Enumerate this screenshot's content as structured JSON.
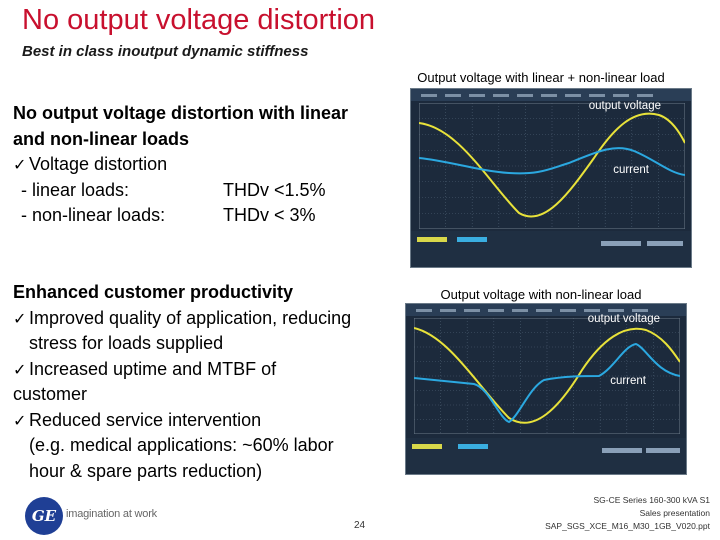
{
  "header": {
    "title": "No output voltage distortion",
    "subtitle": "Best in class inoutput dynamic stiffness"
  },
  "section1": {
    "heading_line1": "No output voltage distortion with linear",
    "heading_line2": "and non-linear loads",
    "bullet": "Voltage distortion",
    "rows": [
      {
        "label": "- linear loads:",
        "value": "THDv  <1.5%"
      },
      {
        "label": "- non-linear loads:",
        "value": "THDv  <  3%"
      }
    ]
  },
  "section2": {
    "heading": "Enhanced customer productivity",
    "bullets": [
      {
        "lines": [
          "Improved quality of application, reducing",
          "stress for loads supplied"
        ]
      },
      {
        "lines": [
          "Increased uptime and MTBF of",
          "customer"
        ]
      },
      {
        "lines": [
          "Reduced service intervention",
          "(e.g. medical applications: ~60% labor",
          "hour & spare parts reduction)"
        ]
      }
    ]
  },
  "scope1": {
    "caption": "Output  voltage with linear + non-linear load",
    "voltage_label": "output voltage",
    "current_label": "current"
  },
  "scope2": {
    "caption": "Output  voltage with non-linear load",
    "voltage_label": "output voltage",
    "current_label": "current"
  },
  "footer": {
    "tagline": "imagination at work",
    "logo_text": "GE",
    "page_number": "24",
    "lines": [
      "SG-CE Series 160-300 kVA S1",
      "Sales presentation",
      "SAP_SGS_XCE_M16_M30_1GB_V020.ppt"
    ]
  },
  "colors": {
    "title": "#c8102e",
    "scope_background": "#1c2a3c",
    "voltage_trace": "#e8e23a",
    "current_trace": "#2ba8e0",
    "logo": "#1f3f95"
  }
}
